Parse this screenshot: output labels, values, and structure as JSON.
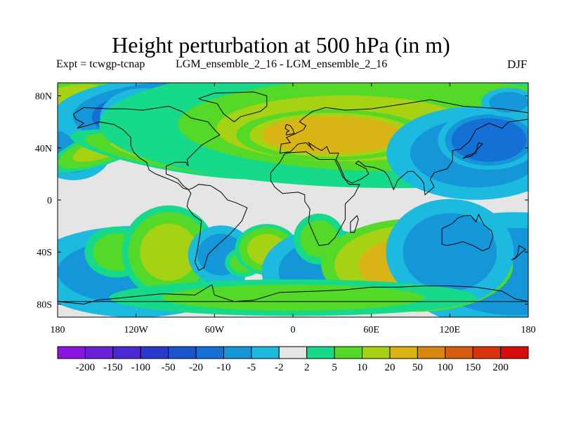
{
  "chart_data": {
    "type": "heatmap",
    "title": "Height perturbation at 500 hPa (in m)",
    "subtitle_left": "Expt = tcwgp-tcnap",
    "subtitle_center": "LGM_ensemble_2_16 - LGM_ensemble_2_16",
    "subtitle_right": "DJF",
    "xlim": [
      -180,
      180
    ],
    "ylim": [
      -90,
      90
    ],
    "x_ticks": [
      {
        "value": -180,
        "label": "180"
      },
      {
        "value": -120,
        "label": "120W"
      },
      {
        "value": -60,
        "label": "60W"
      },
      {
        "value": 0,
        "label": "0"
      },
      {
        "value": 60,
        "label": "60E"
      },
      {
        "value": 120,
        "label": "120E"
      },
      {
        "value": 180,
        "label": "180"
      }
    ],
    "y_ticks": [
      {
        "value": 80,
        "label": "80N"
      },
      {
        "value": 40,
        "label": "40N"
      },
      {
        "value": 0,
        "label": "0"
      },
      {
        "value": -40,
        "label": "40S"
      },
      {
        "value": -80,
        "label": "80S"
      }
    ],
    "colorbar": {
      "levels": [
        "-200",
        "-150",
        "-100",
        "-50",
        "-20",
        "-10",
        "-5",
        "-2",
        "2",
        "5",
        "10",
        "20",
        "50",
        "100",
        "150",
        "200"
      ],
      "colors": [
        "#8a16e0",
        "#6a1fd8",
        "#4a28d2",
        "#2a38cc",
        "#1a55cc",
        "#1470d4",
        "#1496d8",
        "#1cbadf",
        "#e5e5e5",
        "#17d98a",
        "#54d928",
        "#a7d214",
        "#d8b514",
        "#d8880e",
        "#d85c0d",
        "#d8330c",
        "#d80b0b"
      ]
    },
    "field": [
      {
        "v": 30,
        "lon": -10,
        "lat": 86,
        "a": 90,
        "b": 6
      },
      {
        "v": 18,
        "lon": -160,
        "lat": 72,
        "a": 28,
        "b": 14
      },
      {
        "v": -8,
        "lon": -168,
        "lat": 38,
        "a": 18,
        "b": 14
      },
      {
        "v": 10,
        "lon": -140,
        "lat": 42,
        "a": 30,
        "b": 8,
        "rot": -20
      },
      {
        "v": -14,
        "lon": -70,
        "lat": 64,
        "a": 70,
        "b": 20
      },
      {
        "v": -26,
        "lon": -60,
        "lat": 67,
        "a": 34,
        "b": 14
      },
      {
        "v": -8,
        "lon": -115,
        "lat": 63,
        "a": 20,
        "b": 14
      },
      {
        "v": 11,
        "lon": -90,
        "lat": 35,
        "a": 50,
        "b": 8,
        "rot": 10
      },
      {
        "v": 8,
        "lon": 80,
        "lat": 58,
        "a": 140,
        "b": 30
      },
      {
        "v": 19,
        "lon": 40,
        "lat": 55,
        "a": 70,
        "b": 18
      },
      {
        "v": 30,
        "lon": 30,
        "lat": 50,
        "a": 45,
        "b": 12
      },
      {
        "v": -8,
        "lon": 140,
        "lat": 36,
        "a": 42,
        "b": 22
      },
      {
        "v": -14,
        "lon": 150,
        "lat": 46,
        "a": 24,
        "b": 14
      },
      {
        "v": -6,
        "lon": 165,
        "lat": 75,
        "a": 15,
        "b": 8
      },
      {
        "v": -7,
        "lon": 170,
        "lat": -55,
        "a": 55,
        "b": 28
      },
      {
        "v": -6,
        "lon": -120,
        "lat": -55,
        "a": 60,
        "b": 25
      },
      {
        "v": 9,
        "lon": -135,
        "lat": -40,
        "a": 15,
        "b": 12
      },
      {
        "v": 12,
        "lon": -95,
        "lat": -40,
        "a": 22,
        "b": 22
      },
      {
        "v": -6,
        "lon": -55,
        "lat": -42,
        "a": 18,
        "b": 16
      },
      {
        "v": 6,
        "lon": -38,
        "lat": -48,
        "a": 10,
        "b": 8
      },
      {
        "v": 11,
        "lon": -20,
        "lat": -38,
        "a": 15,
        "b": 12
      },
      {
        "v": -9,
        "lon": 25,
        "lat": -55,
        "a": 30,
        "b": 20
      },
      {
        "v": 7,
        "lon": 20,
        "lat": -30,
        "a": 12,
        "b": 12
      },
      {
        "v": 20,
        "lon": 95,
        "lat": -50,
        "a": 45,
        "b": 22
      },
      {
        "v": -7,
        "lon": 120,
        "lat": -40,
        "a": 30,
        "b": 25
      },
      {
        "v": 5,
        "lon": 0,
        "lat": -75,
        "a": 100,
        "b": 10
      }
    ]
  }
}
